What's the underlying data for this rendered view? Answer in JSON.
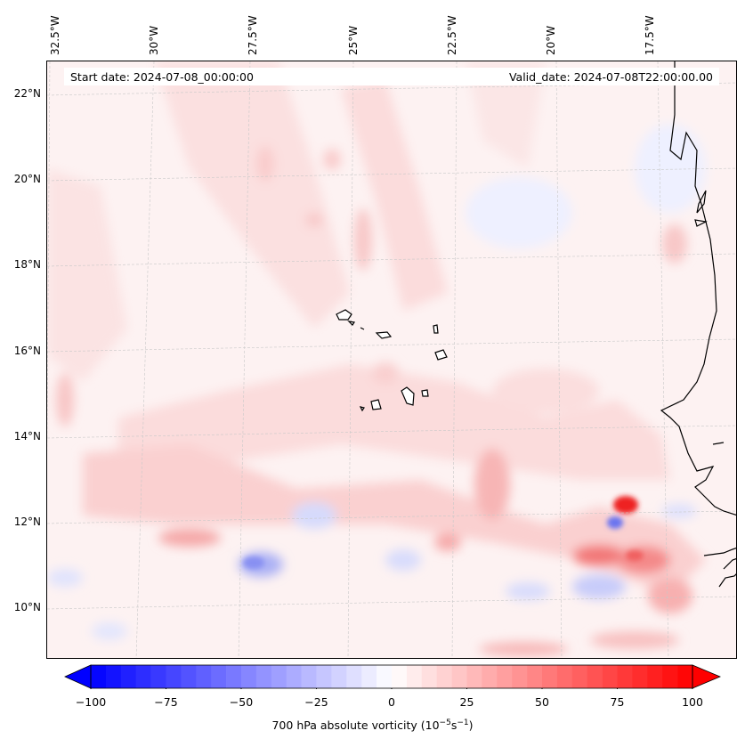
{
  "map": {
    "title_left": "Start date: 2024-07-08_00:00:00",
    "title_right": "Valid_date: 2024-07-08T22:00:00.00",
    "longitude_labels": [
      "32.5°W",
      "30°W",
      "27.5°W",
      "25°W",
      "22.5°W",
      "20°W",
      "17.5°W"
    ],
    "latitude_labels": [
      "22°N",
      "20°N",
      "18°N",
      "16°N",
      "14°N",
      "12°N",
      "10°N"
    ],
    "field_name": "700 hPa absolute vorticity",
    "colors": {
      "negative": "#0000ff",
      "zero": "#ffffff",
      "positive": "#ff0000",
      "coastline": "#000000"
    }
  },
  "colorbar": {
    "min": -100,
    "max": 100,
    "tick_labels": [
      "−100",
      "−75",
      "−50",
      "−25",
      "0",
      "25",
      "50",
      "75",
      "100"
    ],
    "tick_values": [
      -100,
      -75,
      -50,
      -25,
      0,
      25,
      50,
      75,
      100
    ],
    "label_text": "700 hPa absolute vorticity (10",
    "label_exp1": "−5",
    "label_mid": "s",
    "label_exp2": "−1",
    "label_close": ")"
  }
}
